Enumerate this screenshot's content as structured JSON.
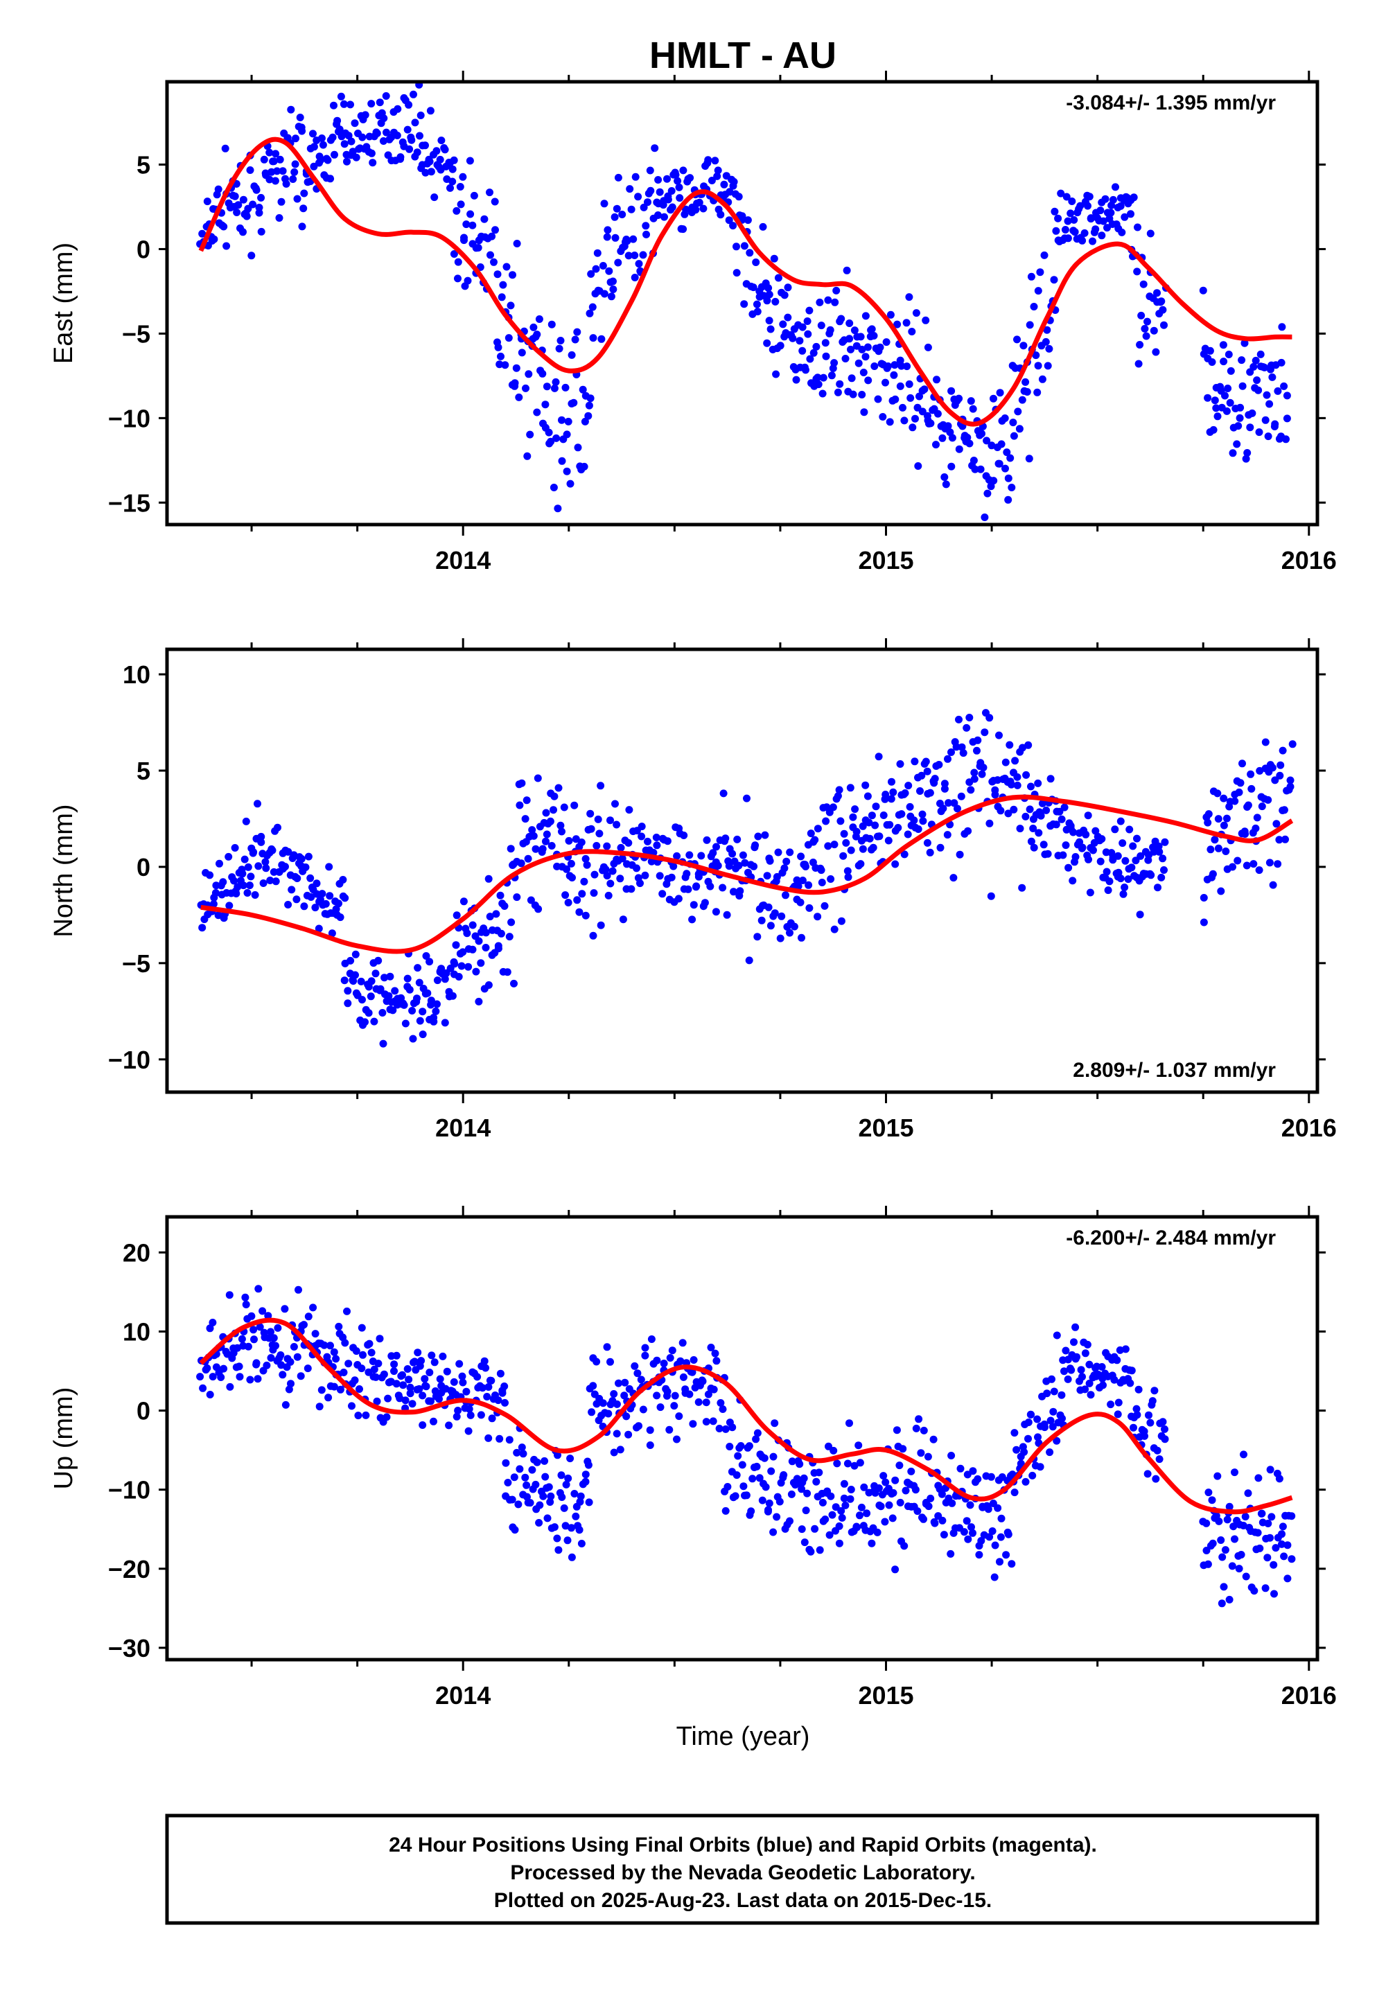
{
  "title": "HMLT - AU",
  "footer": {
    "line1": "24 Hour Positions Using Final Orbits (blue) and Rapid Orbits (magenta).",
    "line2": "Processed by the Nevada Geodetic Laboratory.",
    "line3": "Plotted on 2025-Aug-23. Last data on 2015-Dec-15."
  },
  "colors": {
    "points": "#0000ff",
    "fit": "#ff0000",
    "frame": "#000000"
  },
  "chart_data": [
    {
      "type": "scatter",
      "ylabel": "East (mm)",
      "xlabel": "",
      "rate_label": "-3.084+/- 1.395 mm/yr",
      "rate_position": "top-right",
      "xlim": [
        2013.3,
        2016.02
      ],
      "ylim": [
        -16.3,
        9.9
      ],
      "xticks": [
        2014,
        2015,
        2016
      ],
      "yticks": [
        5,
        0,
        -5,
        -10,
        -15
      ],
      "ytick_labels": [
        "5",
        "0",
        "−5",
        "−10",
        "−15"
      ],
      "series": [
        {
          "kind": "fit",
          "x": [
            2013.38,
            2013.45,
            2013.52,
            2013.58,
            2013.65,
            2013.72,
            2013.8,
            2013.88,
            2013.95,
            2014.03,
            2014.1,
            2014.18,
            2014.25,
            2014.32,
            2014.4,
            2014.47,
            2014.55,
            2014.62,
            2014.7,
            2014.78,
            2014.85,
            2014.92,
            2015.0,
            2015.08,
            2015.15,
            2015.22,
            2015.3,
            2015.38,
            2015.45,
            2015.55,
            2015.62,
            2015.7,
            2015.78,
            2015.85,
            2015.92,
            2015.96
          ],
          "y": [
            -0.1,
            3.8,
            6.1,
            6.3,
            4.1,
            1.8,
            0.9,
            1.0,
            0.7,
            -1.2,
            -3.9,
            -6.1,
            -7.2,
            -6.4,
            -3.0,
            0.8,
            3.3,
            2.6,
            -0.2,
            -1.8,
            -2.1,
            -2.2,
            -4.1,
            -7.2,
            -9.6,
            -10.3,
            -8.3,
            -4.1,
            -0.9,
            0.3,
            -1.1,
            -3.2,
            -4.8,
            -5.3,
            -5.2,
            -5.2
          ]
        },
        {
          "kind": "points",
          "segments": [
            {
              "x0": 2013.38,
              "x1": 2013.46,
              "c": [
                0,
                4
              ],
              "s": 1.6
            },
            {
              "x0": 2013.46,
              "x1": 2013.62,
              "c": [
                1.5,
                6.5
              ],
              "s": 1.6
            },
            {
              "x0": 2013.62,
              "x1": 2013.72,
              "c": [
                3.5,
                7.5
              ],
              "s": 1.4
            },
            {
              "x0": 2013.72,
              "x1": 2013.9,
              "c": [
                6.5,
                7.5
              ],
              "s": 1.3
            },
            {
              "x0": 2013.9,
              "x1": 2013.98,
              "c": [
                6.0,
                4.5
              ],
              "s": 1.3
            },
            {
              "x0": 2013.98,
              "x1": 2014.08,
              "c": [
                1.0,
                -1.0
              ],
              "s": 3.0
            },
            {
              "x0": 2014.08,
              "x1": 2014.22,
              "c": [
                -4.0,
                -9.0
              ],
              "s": 3.5
            },
            {
              "x0": 2014.22,
              "x1": 2014.3,
              "c": [
                -9.0,
                -10.0
              ],
              "s": 3.5
            },
            {
              "x0": 2014.3,
              "x1": 2014.36,
              "c": [
                -5.0,
                -1.0
              ],
              "s": 3.5
            },
            {
              "x0": 2014.36,
              "x1": 2014.46,
              "c": [
                0.0,
                1.5
              ],
              "s": 3.0
            },
            {
              "x0": 2014.46,
              "x1": 2014.64,
              "c": [
                3.0,
                4.0
              ],
              "s": 1.2
            },
            {
              "x0": 2014.64,
              "x1": 2014.72,
              "c": [
                2.5,
                -4.0
              ],
              "s": 3.0
            },
            {
              "x0": 2014.72,
              "x1": 2014.95,
              "c": [
                -5.0,
                -6.5
              ],
              "s": 2.8
            },
            {
              "x0": 2014.95,
              "x1": 2015.1,
              "c": [
                -5.5,
                -8.5
              ],
              "s": 2.5
            },
            {
              "x0": 2015.1,
              "x1": 2015.3,
              "c": [
                -9.5,
                -12.5
              ],
              "s": 2.2
            },
            {
              "x0": 2015.3,
              "x1": 2015.4,
              "c": [
                -9.0,
                -4.0
              ],
              "s": 3.5
            },
            {
              "x0": 2015.4,
              "x1": 2015.58,
              "c": [
                1.5,
                2.5
              ],
              "s": 1.3
            },
            {
              "x0": 2015.58,
              "x1": 2015.66,
              "c": [
                0.0,
                -5.0
              ],
              "s": 3.5
            },
            {
              "x0": 2015.75,
              "x1": 2015.95,
              "c": [
                -7.5,
                -9.5
              ],
              "s": 2.5
            }
          ]
        }
      ]
    },
    {
      "type": "scatter",
      "ylabel": "North (mm)",
      "xlabel": "",
      "rate_label": "2.809+/- 1.037 mm/yr",
      "rate_position": "bottom-right",
      "xlim": [
        2013.3,
        2016.02
      ],
      "ylim": [
        -11.7,
        11.3
      ],
      "xticks": [
        2014,
        2015,
        2016
      ],
      "yticks": [
        10,
        5,
        0,
        -5,
        -10
      ],
      "ytick_labels": [
        "10",
        "5",
        "0",
        "−5",
        "−10"
      ],
      "series": [
        {
          "kind": "fit",
          "x": [
            2013.38,
            2013.5,
            2013.62,
            2013.75,
            2013.88,
            2014.0,
            2014.12,
            2014.25,
            2014.38,
            2014.5,
            2014.62,
            2014.75,
            2014.85,
            2014.95,
            2015.05,
            2015.18,
            2015.3,
            2015.42,
            2015.55,
            2015.68,
            2015.8,
            2015.88,
            2015.96
          ],
          "y": [
            -2.1,
            -2.5,
            -3.2,
            -4.1,
            -4.3,
            -2.7,
            -0.4,
            0.7,
            0.7,
            0.3,
            -0.4,
            -1.1,
            -1.3,
            -0.6,
            1.1,
            2.8,
            3.6,
            3.4,
            2.9,
            2.3,
            1.6,
            1.4,
            2.4
          ]
        },
        {
          "kind": "points",
          "segments": [
            {
              "x0": 2013.38,
              "x1": 2013.5,
              "c": [
                -2,
                -0.5
              ],
              "s": 1.3
            },
            {
              "x0": 2013.5,
              "x1": 2013.62,
              "c": [
                0.5,
                0.0
              ],
              "s": 1.3
            },
            {
              "x0": 2013.62,
              "x1": 2013.72,
              "c": [
                -1.0,
                -2.0
              ],
              "s": 1.2
            },
            {
              "x0": 2013.72,
              "x1": 2013.92,
              "c": [
                -6.0,
                -7.5
              ],
              "s": 1.4
            },
            {
              "x0": 2013.92,
              "x1": 2013.98,
              "c": [
                -8.0,
                -6.0
              ],
              "s": 1.8
            },
            {
              "x0": 2013.98,
              "x1": 2014.12,
              "c": [
                -5.0,
                -2.0
              ],
              "s": 2.2
            },
            {
              "x0": 2014.12,
              "x1": 2014.25,
              "c": [
                1.0,
                1.5
              ],
              "s": 2.2
            },
            {
              "x0": 2014.25,
              "x1": 2014.4,
              "c": [
                0.0,
                1.0
              ],
              "s": 2.8
            },
            {
              "x0": 2014.4,
              "x1": 2014.6,
              "c": [
                1.0,
                -0.5
              ],
              "s": 1.5
            },
            {
              "x0": 2014.6,
              "x1": 2014.8,
              "c": [
                0.5,
                -1.5
              ],
              "s": 2.3
            },
            {
              "x0": 2014.8,
              "x1": 2014.95,
              "c": [
                -0.5,
                2.5
              ],
              "s": 2.6
            },
            {
              "x0": 2014.95,
              "x1": 2015.1,
              "c": [
                2.5,
                3.5
              ],
              "s": 2.5
            },
            {
              "x0": 2015.1,
              "x1": 2015.35,
              "c": [
                3.5,
                4.0
              ],
              "s": 2.6
            },
            {
              "x0": 2015.35,
              "x1": 2015.55,
              "c": [
                2.5,
                0.5
              ],
              "s": 1.5
            },
            {
              "x0": 2015.55,
              "x1": 2015.66,
              "c": [
                0.0,
                0.5
              ],
              "s": 1.5
            },
            {
              "x0": 2015.75,
              "x1": 2015.96,
              "c": [
                1.5,
                4.0
              ],
              "s": 2.3
            }
          ]
        }
      ]
    },
    {
      "type": "scatter",
      "ylabel": "Up (mm)",
      "xlabel": "Time (year)",
      "rate_label": "-6.200+/- 2.484 mm/yr",
      "rate_position": "top-right",
      "xlim": [
        2013.3,
        2016.02
      ],
      "ylim": [
        -31.5,
        24.5
      ],
      "xticks": [
        2014,
        2015,
        2016
      ],
      "yticks": [
        20,
        10,
        0,
        -10,
        -20,
        -30
      ],
      "ytick_labels": [
        "20",
        "10",
        "0",
        "−10",
        "−20",
        "−30"
      ],
      "series": [
        {
          "kind": "fit",
          "x": [
            2013.38,
            2013.48,
            2013.58,
            2013.68,
            2013.78,
            2013.88,
            2014.0,
            2014.1,
            2014.22,
            2014.32,
            2014.42,
            2014.52,
            2014.62,
            2014.72,
            2014.82,
            2014.92,
            2015.0,
            2015.1,
            2015.2,
            2015.28,
            2015.38,
            2015.48,
            2015.55,
            2015.62,
            2015.72,
            2015.82,
            2015.9,
            2015.96
          ],
          "y": [
            6,
            10.5,
            11,
            5.5,
            0.8,
            -0.2,
            1.3,
            -0.5,
            -5,
            -3.3,
            2.5,
            5.5,
            3.5,
            -2.5,
            -6.2,
            -5.5,
            -5,
            -7.5,
            -11,
            -10,
            -4,
            -0.6,
            -1.5,
            -6,
            -11.5,
            -12.8,
            -12,
            -11
          ]
        },
        {
          "kind": "points",
          "segments": [
            {
              "x0": 2013.38,
              "x1": 2013.55,
              "c": [
                5,
                9
              ],
              "s": 4.0
            },
            {
              "x0": 2013.55,
              "x1": 2013.7,
              "c": [
                9,
                6
              ],
              "s": 4.5
            },
            {
              "x0": 2013.7,
              "x1": 2013.9,
              "c": [
                6,
                3
              ],
              "s": 3.5
            },
            {
              "x0": 2013.9,
              "x1": 2014.1,
              "c": [
                3,
                1
              ],
              "s": 3.5
            },
            {
              "x0": 2014.1,
              "x1": 2014.3,
              "c": [
                -8,
                -12
              ],
              "s": 5.0
            },
            {
              "x0": 2014.3,
              "x1": 2014.45,
              "c": [
                0,
                3
              ],
              "s": 5.0
            },
            {
              "x0": 2014.45,
              "x1": 2014.62,
              "c": [
                4,
                2
              ],
              "s": 4.0
            },
            {
              "x0": 2014.62,
              "x1": 2014.8,
              "c": [
                -5,
                -10
              ],
              "s": 5.0
            },
            {
              "x0": 2014.8,
              "x1": 2015.0,
              "c": [
                -11,
                -10
              ],
              "s": 5.0
            },
            {
              "x0": 2015.0,
              "x1": 2015.3,
              "c": [
                -10,
                -14
              ],
              "s": 5.5
            },
            {
              "x0": 2015.3,
              "x1": 2015.42,
              "c": [
                -8,
                2
              ],
              "s": 5.0
            },
            {
              "x0": 2015.42,
              "x1": 2015.58,
              "c": [
                7,
                4
              ],
              "s": 3.0
            },
            {
              "x0": 2015.58,
              "x1": 2015.66,
              "c": [
                2,
                -5
              ],
              "s": 4.0
            },
            {
              "x0": 2015.75,
              "x1": 2015.96,
              "c": [
                -16,
                -16
              ],
              "s": 6.0
            }
          ]
        }
      ]
    }
  ]
}
